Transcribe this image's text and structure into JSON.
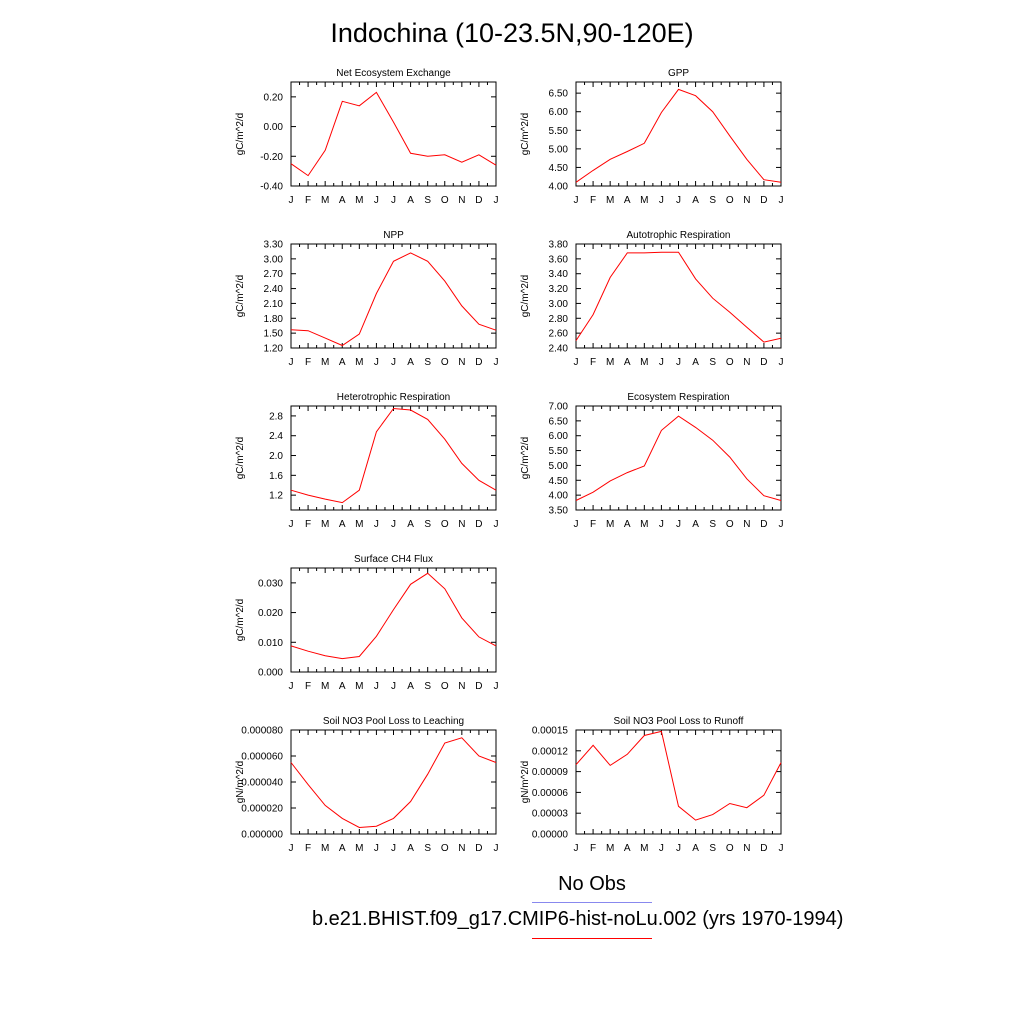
{
  "title": "Indochina (10-23.5N,90-120E)",
  "legend": {
    "obs_label": "No Obs",
    "obs_color": "#8888ee",
    "model_label": "b.e21.BHIST.f09_g17.CMIP6-hist-noLu.002 (yrs 1970-1994)",
    "model_color": "#ff0000"
  },
  "chart_data": [
    {
      "type": "line",
      "title": "Net Ecosystem Exchange",
      "ylabel": "gC/m^2/d",
      "x": [
        "J",
        "F",
        "M",
        "A",
        "M",
        "J",
        "J",
        "A",
        "S",
        "O",
        "N",
        "D",
        "J"
      ],
      "ylim": [
        -0.4,
        0.3
      ],
      "yticks": [
        "0.20",
        "0.00",
        "-0.20",
        "-0.40"
      ],
      "series": [
        {
          "values": [
            -0.25,
            -0.33,
            -0.16,
            0.17,
            0.14,
            0.23,
            0.03,
            -0.18,
            -0.2,
            -0.19,
            -0.24,
            -0.19,
            -0.26
          ]
        }
      ]
    },
    {
      "type": "line",
      "title": "GPP",
      "ylabel": "gC/m^2/d",
      "x": [
        "J",
        "F",
        "M",
        "A",
        "M",
        "J",
        "J",
        "A",
        "S",
        "O",
        "N",
        "D",
        "J"
      ],
      "ylim": [
        4.0,
        6.8
      ],
      "yticks": [
        "6.50",
        "6.00",
        "5.50",
        "5.00",
        "4.50",
        "4.00"
      ],
      "series": [
        {
          "values": [
            4.1,
            4.42,
            4.72,
            4.93,
            5.15,
            5.98,
            6.6,
            6.43,
            6.0,
            5.35,
            4.72,
            4.17,
            4.1
          ]
        }
      ]
    },
    {
      "type": "line",
      "title": "NPP",
      "ylabel": "gC/m^2/d",
      "x": [
        "J",
        "F",
        "M",
        "A",
        "M",
        "J",
        "J",
        "A",
        "S",
        "O",
        "N",
        "D",
        "J"
      ],
      "ylim": [
        1.2,
        3.3
      ],
      "yticks": [
        "3.30",
        "3.00",
        "2.70",
        "2.40",
        "2.10",
        "1.80",
        "1.50",
        "1.20"
      ],
      "series": [
        {
          "values": [
            1.57,
            1.55,
            1.4,
            1.25,
            1.48,
            2.3,
            2.95,
            3.12,
            2.95,
            2.55,
            2.05,
            1.68,
            1.56
          ]
        }
      ]
    },
    {
      "type": "line",
      "title": "Autotrophic Respiration",
      "ylabel": "gC/m^2/d",
      "x": [
        "J",
        "F",
        "M",
        "A",
        "M",
        "J",
        "J",
        "A",
        "S",
        "O",
        "N",
        "D",
        "J"
      ],
      "ylim": [
        2.4,
        3.8
      ],
      "yticks": [
        "3.80",
        "3.60",
        "3.40",
        "3.20",
        "3.00",
        "2.80",
        "2.60",
        "2.40"
      ],
      "series": [
        {
          "values": [
            2.5,
            2.85,
            3.35,
            3.68,
            3.68,
            3.69,
            3.69,
            3.33,
            3.07,
            2.88,
            2.68,
            2.48,
            2.53
          ]
        }
      ]
    },
    {
      "type": "line",
      "title": "Heterotrophic Respiration",
      "ylabel": "gC/m^2/d",
      "x": [
        "J",
        "F",
        "M",
        "A",
        "M",
        "J",
        "J",
        "A",
        "S",
        "O",
        "N",
        "D",
        "J"
      ],
      "ylim": [
        0.9,
        3.0
      ],
      "yticks": [
        "2.8",
        "2.4",
        "2.0",
        "1.6",
        "1.2"
      ],
      "series": [
        {
          "values": [
            1.3,
            1.2,
            1.12,
            1.05,
            1.3,
            2.48,
            2.95,
            2.92,
            2.73,
            2.33,
            1.84,
            1.5,
            1.3
          ]
        }
      ]
    },
    {
      "type": "line",
      "title": "Ecosystem Respiration",
      "ylabel": "gC/m^2/d",
      "x": [
        "J",
        "F",
        "M",
        "A",
        "M",
        "J",
        "J",
        "A",
        "S",
        "O",
        "N",
        "D",
        "J"
      ],
      "ylim": [
        3.5,
        7.0
      ],
      "yticks": [
        "7.00",
        "6.50",
        "6.00",
        "5.50",
        "5.00",
        "4.50",
        "4.00",
        "3.50"
      ],
      "series": [
        {
          "values": [
            3.82,
            4.1,
            4.48,
            4.76,
            4.98,
            6.18,
            6.66,
            6.28,
            5.85,
            5.28,
            4.55,
            3.98,
            3.82
          ]
        }
      ]
    },
    {
      "type": "line",
      "title": "Surface CH4 Flux",
      "ylabel": "gC/m^2/d",
      "x": [
        "J",
        "F",
        "M",
        "A",
        "M",
        "J",
        "J",
        "A",
        "S",
        "O",
        "N",
        "D",
        "J"
      ],
      "ylim": [
        0.0,
        0.035
      ],
      "yticks": [
        "0.030",
        "0.020",
        "0.010",
        "0.000"
      ],
      "series": [
        {
          "values": [
            0.0088,
            0.007,
            0.0055,
            0.0045,
            0.0052,
            0.012,
            0.021,
            0.0295,
            0.0332,
            0.028,
            0.0182,
            0.0118,
            0.0088
          ]
        }
      ]
    },
    {
      "type": "line",
      "title": "Soil NO3 Pool Loss to Leaching",
      "ylabel": "gN/m^2/d",
      "x": [
        "J",
        "F",
        "M",
        "A",
        "M",
        "J",
        "J",
        "A",
        "S",
        "O",
        "N",
        "D",
        "J"
      ],
      "ylim": [
        0.0,
        8e-05
      ],
      "yticks": [
        "0.000080",
        "0.000060",
        "0.000040",
        "0.000020",
        "0.000000"
      ],
      "series": [
        {
          "values": [
            5.5e-05,
            3.8e-05,
            2.2e-05,
            1.2e-05,
            5e-06,
            6e-06,
            1.2e-05,
            2.5e-05,
            4.6e-05,
            7e-05,
            7.4e-05,
            6e-05,
            5.5e-05
          ]
        }
      ]
    },
    {
      "type": "line",
      "title": "Soil NO3 Pool Loss to Runoff",
      "ylabel": "gN/m^2/d",
      "x": [
        "J",
        "F",
        "M",
        "A",
        "M",
        "J",
        "J",
        "A",
        "S",
        "O",
        "N",
        "D",
        "J"
      ],
      "ylim": [
        0.0,
        0.00015
      ],
      "yticks": [
        "0.00015",
        "0.00012",
        "0.00009",
        "0.00006",
        "0.00003",
        "0.00000"
      ],
      "series": [
        {
          "values": [
            0.0001,
            0.000128,
            9.9e-05,
            0.000115,
            0.000142,
            0.000148,
            4e-05,
            2e-05,
            2.8e-05,
            4.4e-05,
            3.8e-05,
            5.6e-05,
            0.000103
          ]
        }
      ]
    }
  ]
}
